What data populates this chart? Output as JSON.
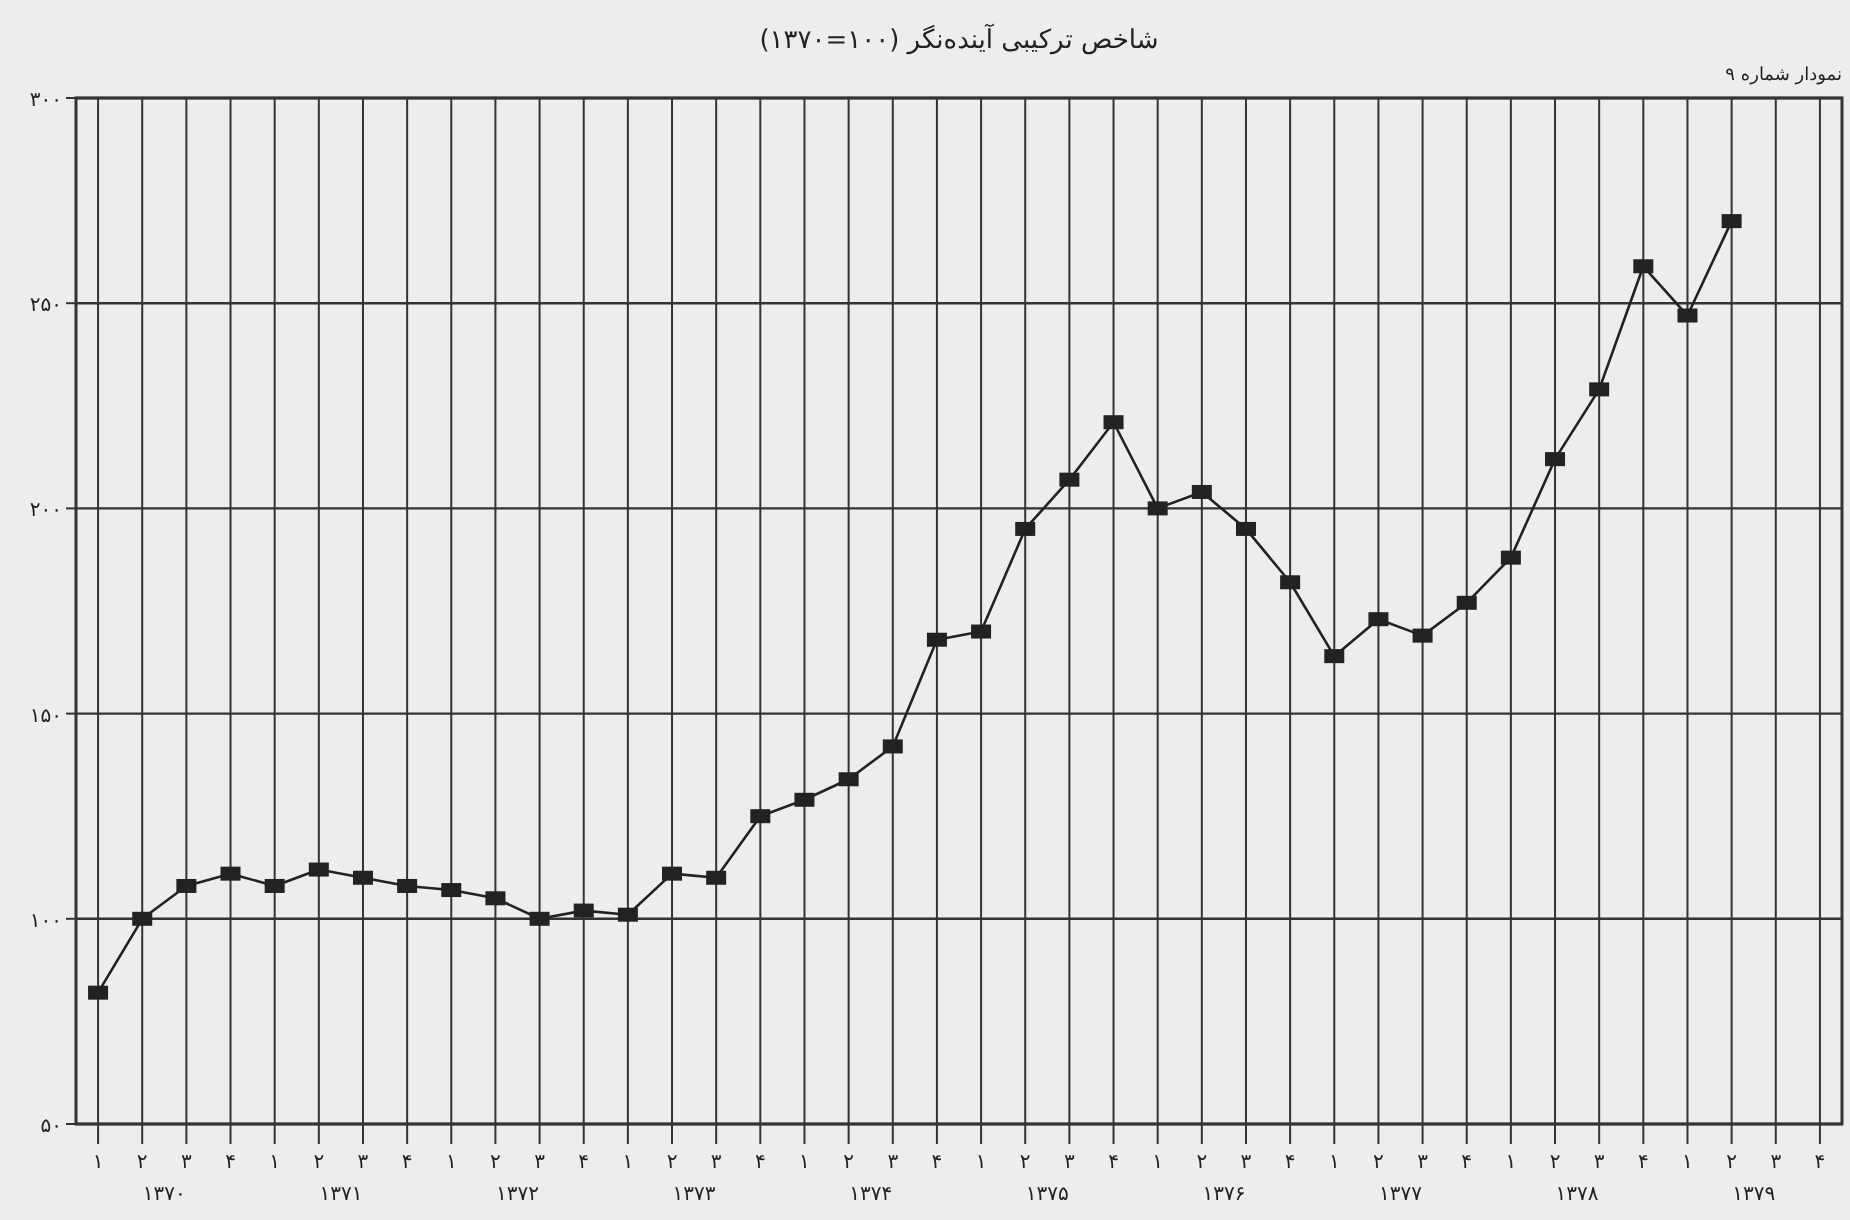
{
  "chart_data": {
    "type": "line",
    "title": "شاخص ترکیبی آینده‌نگر (۱۰۰=۱۳۷۰)",
    "annotations": [
      "نمودار شماره ۹",
      "۱۳۷۰",
      "۱۳۷۱",
      "۱۳۷۲",
      "۱۳۷۳",
      "۱۳۷۴",
      "۱۳۷۵",
      "۱۳۷۶",
      "۱۳۷۷",
      "۱۳۷۸",
      "۱۳۷۹"
    ],
    "categories": [
      "۱",
      "۲",
      "۳",
      "۴",
      "۱",
      "۲",
      "۳",
      "۴",
      "۱",
      "۲",
      "۳",
      "۴",
      "۱",
      "۲",
      "۳",
      "۴",
      "۱",
      "۲",
      "۳",
      "۴",
      "۱",
      "۲",
      "۳",
      "۴",
      "۱",
      "۲",
      "۳",
      "۴",
      "۱",
      "۲",
      "۳",
      "۴",
      "۱",
      "۲",
      "۳",
      "۴",
      "۱",
      "۲",
      "۳",
      "۴"
    ],
    "values": [
      82,
      100,
      108,
      111,
      108,
      112,
      110,
      108,
      107,
      105,
      100,
      102,
      101,
      111,
      110,
      125,
      129,
      134,
      142,
      168,
      170,
      195,
      207,
      221,
      200,
      204,
      195,
      182,
      164,
      173,
      169,
      177,
      188,
      212,
      229,
      259,
      247,
      270,
      null,
      null
    ],
    "color": "#222222",
    "ylim": [
      50,
      300
    ],
    "yticks": [
      {
        "value": 50,
        "label": "۵۰"
      },
      {
        "value": 100,
        "label": "۱۰۰"
      },
      {
        "value": 150,
        "label": "۱۵۰"
      },
      {
        "value": 200,
        "label": "۲۰۰"
      },
      {
        "value": 250,
        "label": "۲۵۰"
      },
      {
        "value": 300,
        "label": "۳۰۰"
      }
    ],
    "grid": true,
    "marker": "square",
    "line_style": "solid"
  }
}
